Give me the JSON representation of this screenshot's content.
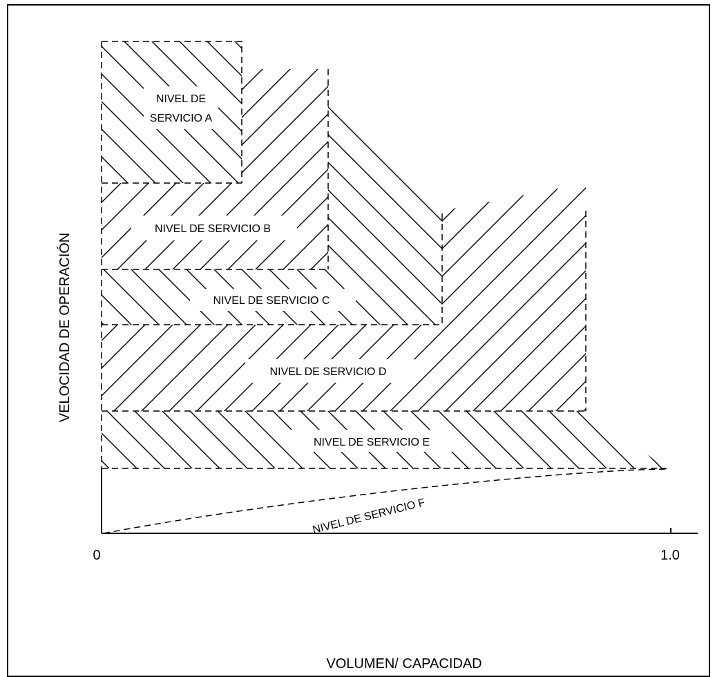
{
  "diagram": {
    "levels": [
      {
        "id": "A",
        "lines": [
          "NIVEL DE",
          "SERVICIO A"
        ]
      },
      {
        "id": "B",
        "lines": [
          "NIVEL DE SERVICIO B"
        ]
      },
      {
        "id": "C",
        "lines": [
          "NIVEL DE SERVICIO C"
        ]
      },
      {
        "id": "D",
        "lines": [
          "NIVEL DE SERVICIO D"
        ]
      },
      {
        "id": "E",
        "lines": [
          "NIVEL DE SERVICIO E"
        ]
      },
      {
        "id": "F",
        "lines": [
          "NIVEL DE SERVICIO F"
        ]
      }
    ],
    "y_axis_title": "VELOCIDAD DE OPERACIÓN",
    "x_axis_title": "VOLUMEN/ CAPACIDAD",
    "x_tick_labels": [
      "0",
      "1.0"
    ],
    "colors": {
      "stroke": "#000000",
      "background": "#ffffff"
    }
  }
}
